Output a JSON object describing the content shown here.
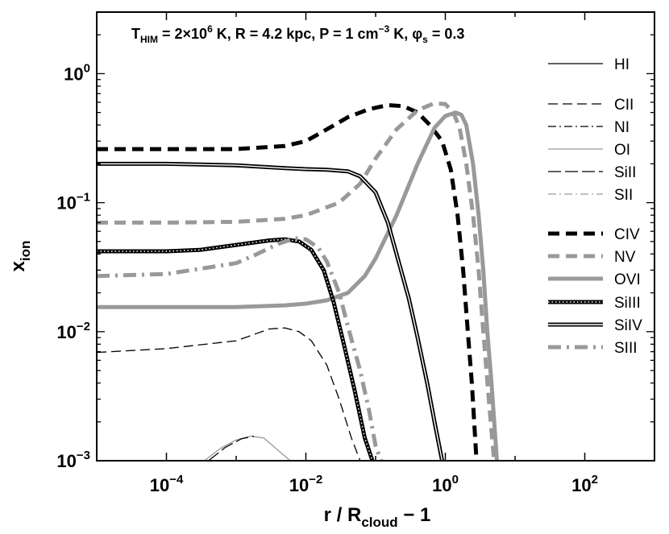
{
  "chart_data": {
    "type": "line",
    "x_scale": "log",
    "y_scale": "log",
    "xlim": [
      1e-05,
      1000
    ],
    "ylim": [
      0.001,
      3
    ],
    "grid": false,
    "legend_position": "right",
    "annotation": {
      "t_prefix": "T",
      "t_sub": "HIM",
      "t_value": " = 2×10",
      "t_exp": "6",
      "t_unit": " K,  R = 4.2 kpc,  P = 1 cm",
      "p_exp": "−3",
      "p_unit": " K,  ",
      "phi": "φ",
      "phi_sub": "s",
      "phi_value": " = 0.3"
    },
    "xlabel": {
      "main": "r / R",
      "sub": "cloud",
      "suffix": " − 1"
    },
    "ylabel": {
      "main": "x",
      "sub": "ion"
    },
    "xticks": [
      {
        "value": 0.0001,
        "base": "10",
        "exp": "−4"
      },
      {
        "value": 0.01,
        "base": "10",
        "exp": "−2"
      },
      {
        "value": 1,
        "base": "10",
        "exp": "0"
      },
      {
        "value": 100,
        "base": "10",
        "exp": "2"
      }
    ],
    "yticks": [
      {
        "value": 0.001,
        "base": "10",
        "exp": "−3"
      },
      {
        "value": 0.01,
        "base": "10",
        "exp": "−2"
      },
      {
        "value": 0.1,
        "base": "10",
        "exp": "−1"
      },
      {
        "value": 1,
        "base": "10",
        "exp": "0"
      }
    ],
    "series": [
      {
        "name": "HI",
        "color": "#000000",
        "style": "thin-solid",
        "points": []
      },
      {
        "name": "CII",
        "color": "#000000",
        "style": "thin-dash",
        "points": [
          [
            1e-05,
            0.0069
          ],
          [
            0.0001,
            0.0074
          ],
          [
            0.001,
            0.0085
          ],
          [
            0.003,
            0.0105
          ],
          [
            0.005,
            0.0107
          ],
          [
            0.008,
            0.01
          ],
          [
            0.012,
            0.0085
          ],
          [
            0.02,
            0.0055
          ],
          [
            0.03,
            0.003
          ],
          [
            0.045,
            0.0015
          ],
          [
            0.06,
            0.001
          ]
        ]
      },
      {
        "name": "NI",
        "color": "#000000",
        "style": "thin-dashdot",
        "points": []
      },
      {
        "name": "OI",
        "color": "#999999",
        "style": "thin-solid",
        "points": [
          [
            0.00035,
            0.001
          ],
          [
            0.0006,
            0.00125
          ],
          [
            0.001,
            0.00145
          ],
          [
            0.0016,
            0.00155
          ],
          [
            0.0025,
            0.0015
          ],
          [
            0.004,
            0.0012
          ],
          [
            0.006,
            0.001
          ]
        ]
      },
      {
        "name": "SiII",
        "color": "#000000",
        "style": "thin-dash-long",
        "points": [
          [
            0.0004,
            0.001
          ],
          [
            0.0007,
            0.00127
          ],
          [
            0.0012,
            0.00148
          ],
          [
            0.0018,
            0.00155
          ]
        ]
      },
      {
        "name": "SII",
        "color": "#999999",
        "style": "thin-dashdot",
        "points": []
      },
      {
        "name": "CIV",
        "color": "#000000",
        "style": "thick-dash",
        "points": [
          [
            1e-05,
            0.26
          ],
          [
            0.0001,
            0.26
          ],
          [
            0.001,
            0.26
          ],
          [
            0.005,
            0.275
          ],
          [
            0.01,
            0.3
          ],
          [
            0.02,
            0.37
          ],
          [
            0.04,
            0.46
          ],
          [
            0.08,
            0.53
          ],
          [
            0.15,
            0.57
          ],
          [
            0.25,
            0.56
          ],
          [
            0.4,
            0.5
          ],
          [
            0.6,
            0.4
          ],
          [
            0.9,
            0.3
          ],
          [
            1.2,
            0.18
          ],
          [
            1.5,
            0.08
          ],
          [
            1.8,
            0.03
          ],
          [
            2.1,
            0.01
          ],
          [
            2.4,
            0.004
          ],
          [
            2.8,
            0.001
          ]
        ]
      },
      {
        "name": "NV",
        "color": "#999999",
        "style": "thick-dash",
        "points": [
          [
            1e-05,
            0.07
          ],
          [
            0.0001,
            0.07
          ],
          [
            0.001,
            0.071
          ],
          [
            0.005,
            0.075
          ],
          [
            0.01,
            0.08
          ],
          [
            0.03,
            0.1
          ],
          [
            0.06,
            0.14
          ],
          [
            0.1,
            0.22
          ],
          [
            0.2,
            0.37
          ],
          [
            0.4,
            0.52
          ],
          [
            0.7,
            0.59
          ],
          [
            1,
            0.58
          ],
          [
            1.3,
            0.5
          ],
          [
            1.6,
            0.38
          ],
          [
            2,
            0.2
          ],
          [
            2.5,
            0.08
          ],
          [
            3,
            0.03
          ],
          [
            3.5,
            0.01
          ],
          [
            4.2,
            0.003
          ],
          [
            5,
            0.001
          ]
        ]
      },
      {
        "name": "OVI",
        "color": "#999999",
        "style": "thick-solid",
        "points": [
          [
            1e-05,
            0.0155
          ],
          [
            0.0001,
            0.0155
          ],
          [
            0.001,
            0.0155
          ],
          [
            0.005,
            0.016
          ],
          [
            0.01,
            0.0165
          ],
          [
            0.02,
            0.0175
          ],
          [
            0.04,
            0.02
          ],
          [
            0.07,
            0.027
          ],
          [
            0.1,
            0.037
          ],
          [
            0.2,
            0.08
          ],
          [
            0.4,
            0.2
          ],
          [
            0.7,
            0.38
          ],
          [
            1,
            0.47
          ],
          [
            1.4,
            0.5
          ],
          [
            1.7,
            0.48
          ],
          [
            2,
            0.4
          ],
          [
            2.5,
            0.2
          ],
          [
            3,
            0.08
          ],
          [
            3.5,
            0.03
          ],
          [
            4,
            0.01
          ],
          [
            4.6,
            0.004
          ],
          [
            5.5,
            0.001
          ]
        ]
      },
      {
        "name": "SiIII",
        "color": "#000000",
        "style": "thick-dotted",
        "points": [
          [
            1e-05,
            0.042
          ],
          [
            0.0001,
            0.042
          ],
          [
            0.0003,
            0.043
          ],
          [
            0.001,
            0.047
          ],
          [
            0.003,
            0.051
          ],
          [
            0.005,
            0.052
          ],
          [
            0.008,
            0.05
          ],
          [
            0.012,
            0.043
          ],
          [
            0.018,
            0.03
          ],
          [
            0.025,
            0.017
          ],
          [
            0.035,
            0.008
          ],
          [
            0.05,
            0.0035
          ],
          [
            0.07,
            0.0015
          ],
          [
            0.09,
            0.001
          ]
        ]
      },
      {
        "name": "SiIV",
        "color": "#000000",
        "style": "thick-double",
        "points": [
          [
            1e-05,
            0.2
          ],
          [
            0.0001,
            0.2
          ],
          [
            0.001,
            0.195
          ],
          [
            0.005,
            0.185
          ],
          [
            0.01,
            0.182
          ],
          [
            0.02,
            0.18
          ],
          [
            0.04,
            0.175
          ],
          [
            0.06,
            0.16
          ],
          [
            0.1,
            0.12
          ],
          [
            0.15,
            0.07
          ],
          [
            0.2,
            0.04
          ],
          [
            0.3,
            0.018
          ],
          [
            0.4,
            0.009
          ],
          [
            0.55,
            0.004
          ],
          [
            0.7,
            0.002
          ],
          [
            0.9,
            0.001
          ]
        ]
      },
      {
        "name": "SIII",
        "color": "#999999",
        "style": "thick-dashdot",
        "points": [
          [
            1e-05,
            0.027
          ],
          [
            0.0001,
            0.028
          ],
          [
            0.001,
            0.034
          ],
          [
            0.002,
            0.04
          ],
          [
            0.004,
            0.048
          ],
          [
            0.007,
            0.053
          ],
          [
            0.01,
            0.052
          ],
          [
            0.015,
            0.045
          ],
          [
            0.02,
            0.035
          ],
          [
            0.03,
            0.02
          ],
          [
            0.04,
            0.011
          ],
          [
            0.06,
            0.005
          ],
          [
            0.08,
            0.0025
          ],
          [
            0.1,
            0.0013
          ],
          [
            0.12,
            0.001
          ]
        ]
      }
    ]
  }
}
